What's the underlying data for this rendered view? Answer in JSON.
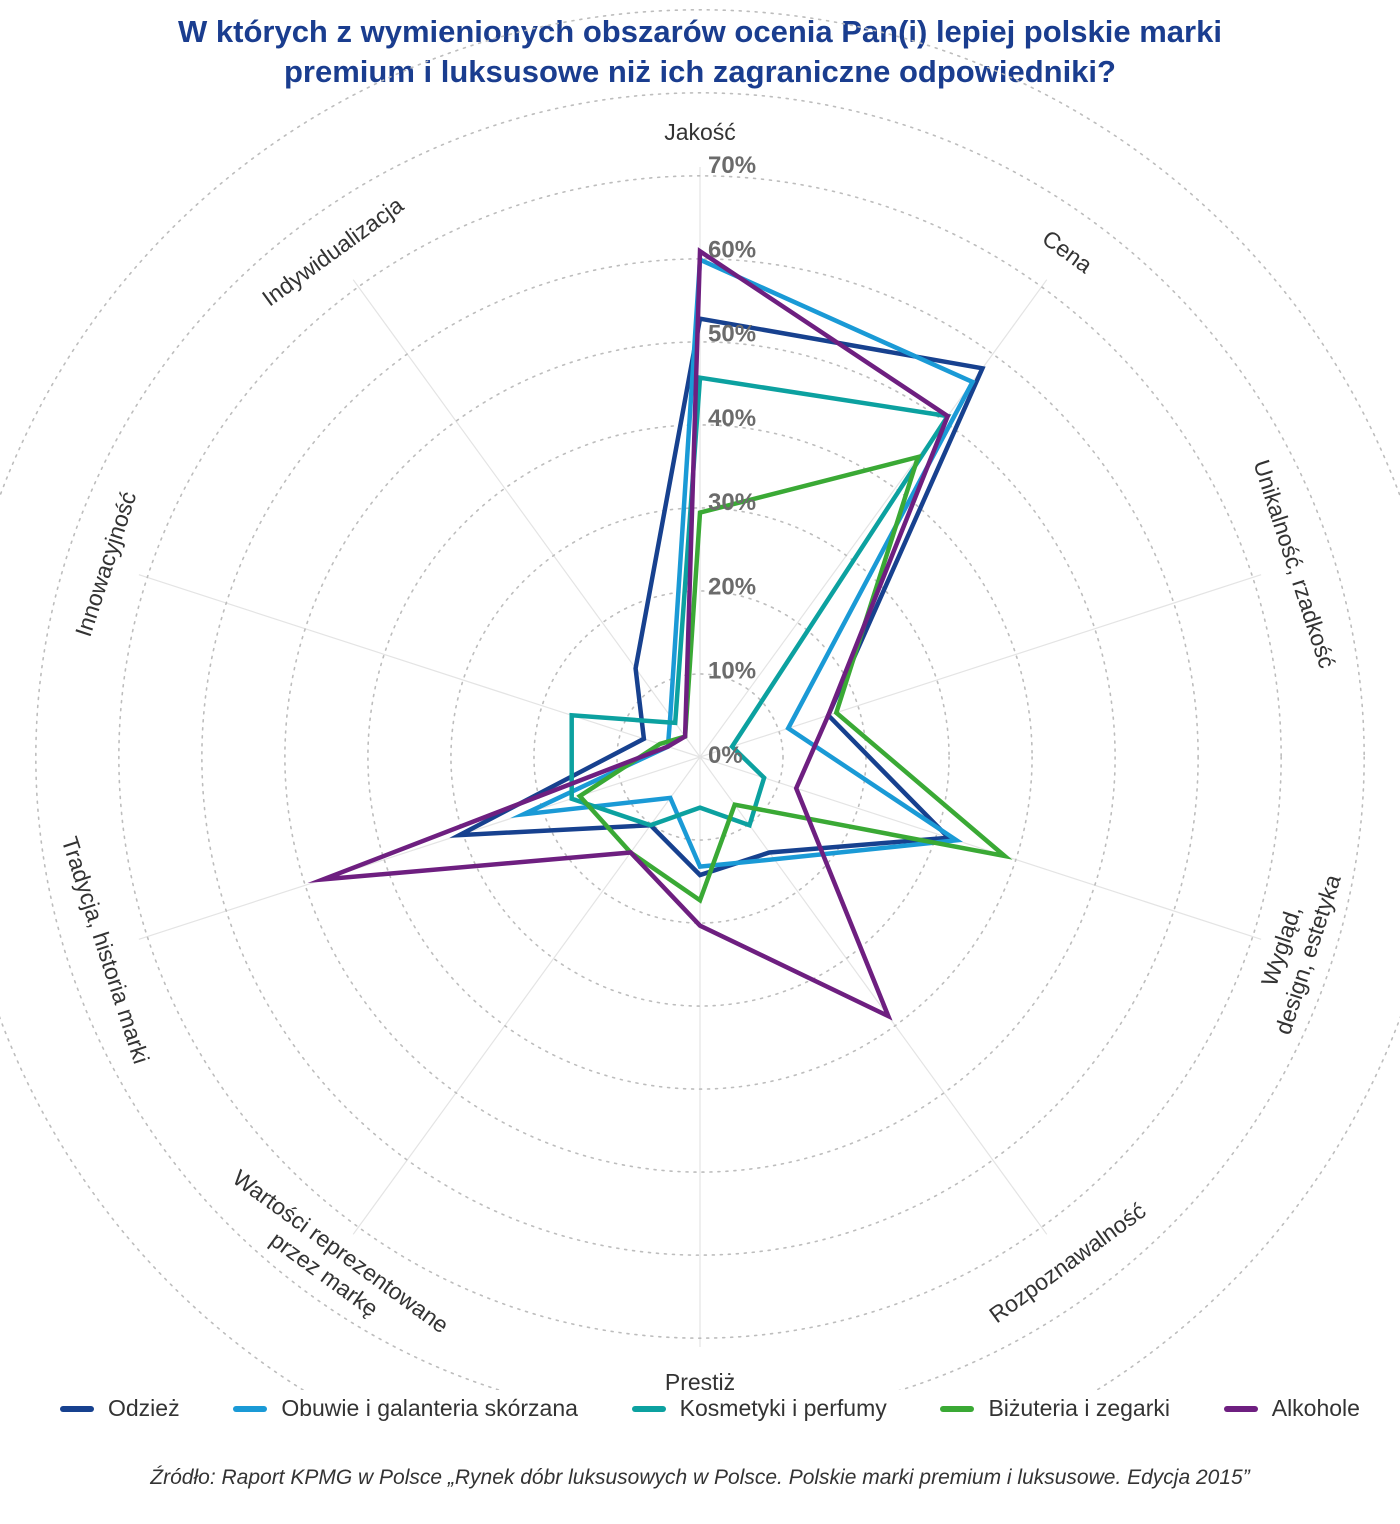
{
  "title_line1": "W których z wymienionych obszarów ocenia Pan(i) lepiej polskie marki",
  "title_line2": "premium i luksusowe niż ich zagraniczne odpowiedniki?",
  "source": "Źródło: Raport KPMG w Polsce „Rynek dóbr luksusowych w Polsce. Polskie marki premium i luksusowe. Edycja 2015”",
  "chart_data": {
    "type": "radar",
    "axes": [
      {
        "lines": [
          "Jakość"
        ]
      },
      {
        "lines": [
          "Cena"
        ]
      },
      {
        "lines": [
          "Unikalność, rzadkość"
        ]
      },
      {
        "lines": [
          "Wygląd,",
          "design, estetyka"
        ]
      },
      {
        "lines": [
          "Rozpoznawalność"
        ]
      },
      {
        "lines": [
          "Prestiż"
        ]
      },
      {
        "lines": [
          "Wartości reprezentowane",
          "przez markę"
        ]
      },
      {
        "lines": [
          "Tradycja, historia marki"
        ]
      },
      {
        "lines": [
          "Innowacyjność"
        ]
      },
      {
        "lines": [
          "Indywidualizacja"
        ]
      }
    ],
    "ticks": [
      "0%",
      "10%",
      "20%",
      "30%",
      "40%",
      "50%",
      "60%",
      "70%"
    ],
    "tick_values": [
      0,
      10,
      20,
      30,
      40,
      50,
      60,
      70
    ],
    "rmax": 70,
    "grid": "dotted circles",
    "legend_position": "bottom",
    "series": [
      {
        "name": "Odzież",
        "color": "#17418f",
        "values": [
          52,
          57,
          16,
          31,
          14,
          14,
          10,
          30,
          7,
          13
        ]
      },
      {
        "name": "Obuwie i galanteria skórzana",
        "color": "#1a9ad6",
        "values": [
          59,
          55,
          11,
          32,
          15,
          13,
          6,
          22,
          4,
          6
        ]
      },
      {
        "name": "Kosmetyki i perfumy",
        "color": "#0ca1a0",
        "values": [
          45,
          50,
          4,
          8,
          10,
          6,
          10,
          16,
          16,
          5
        ]
      },
      {
        "name": "Biżuteria i zegarki",
        "color": "#3aa935",
        "values": [
          29,
          44,
          17,
          38,
          7,
          17,
          14,
          15,
          5,
          3
        ]
      },
      {
        "name": "Alkohole",
        "color": "#6e1f80",
        "values": [
          60,
          50,
          16,
          12,
          38,
          20,
          14,
          47,
          4,
          3
        ]
      }
    ]
  }
}
